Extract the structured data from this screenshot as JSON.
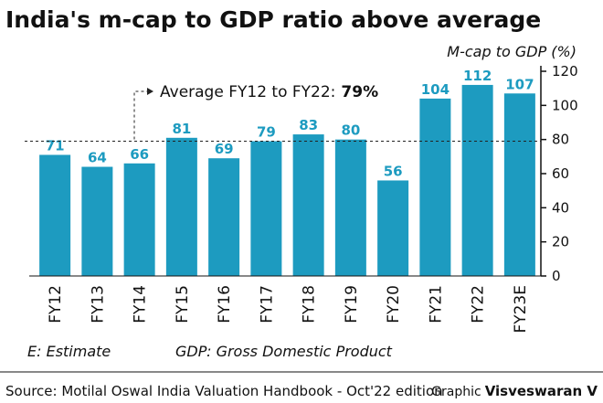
{
  "title": "India's m-cap to GDP ratio above average",
  "unit_label": "M-cap to GDP (%)",
  "average_label": "Average FY12 to FY22:",
  "average_value_text": "79%",
  "footnote_estimate": "E: Estimate",
  "footnote_gdp": "GDP: Gross Domestic Product",
  "source": "Source: Motilal Oswal India Valuation Handbook - Oct'22 edition",
  "credit_prefix": "Graphic",
  "credit_name": "Visveswaran V",
  "colors": {
    "bar": "#1d9bc0",
    "label": "#1d9bc0",
    "text": "#111111"
  },
  "chart_data": {
    "type": "bar",
    "categories": [
      "FY12",
      "FY13",
      "FY14",
      "FY15",
      "FY16",
      "FY17",
      "FY18",
      "FY19",
      "FY20",
      "FY21",
      "FY22",
      "FY23E"
    ],
    "values": [
      71,
      64,
      66,
      81,
      69,
      79,
      83,
      80,
      56,
      104,
      112,
      107
    ],
    "ylim": [
      0,
      120
    ],
    "yticks": [
      0,
      20,
      40,
      60,
      80,
      100,
      120
    ],
    "reference_line": {
      "value": 79
    },
    "grid": false,
    "legend": "none"
  }
}
